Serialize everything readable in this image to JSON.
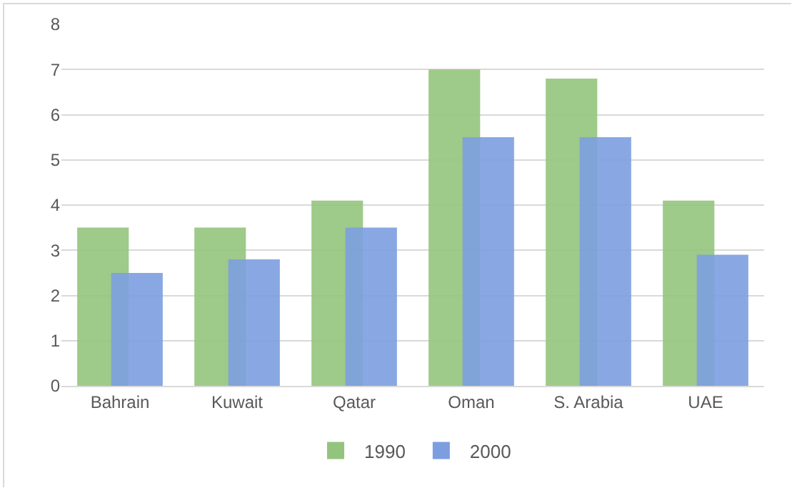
{
  "chart_data": {
    "type": "bar",
    "categories": [
      "Bahrain",
      "Kuwait",
      "Qatar",
      "Oman",
      "S. Arabia",
      "UAE"
    ],
    "series": [
      {
        "name": "1990",
        "color": "#93c47d",
        "values": [
          3.5,
          3.5,
          4.1,
          7.0,
          6.8,
          4.1
        ]
      },
      {
        "name": "2000",
        "color": "#7c9ee0",
        "values": [
          2.5,
          2.8,
          3.5,
          5.5,
          5.5,
          2.9
        ]
      }
    ],
    "ylim": [
      0,
      8
    ],
    "yticks": [
      0,
      1,
      2,
      3,
      4,
      5,
      6,
      7,
      8
    ],
    "grid": "y",
    "legend": "bottom"
  }
}
